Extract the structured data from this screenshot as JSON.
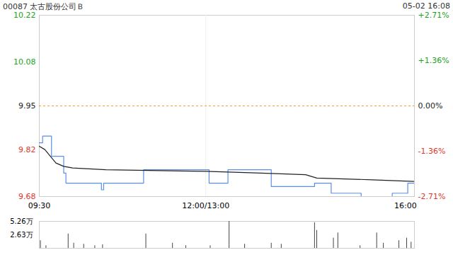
{
  "chart_data": [
    {
      "type": "line",
      "title": "00087 太古股份公司Ｂ",
      "subtitle": "05-02 16:08",
      "baseline": 9.95,
      "xlim": [
        0,
        338
      ],
      "xticks": [
        {
          "value": 0,
          "label": "09:30"
        },
        {
          "value": 150,
          "label": "12:00/13:00"
        },
        {
          "value": 330,
          "label": "16:00"
        }
      ],
      "ylim": [
        9.68,
        10.22
      ],
      "yticks": [
        9.68,
        9.82,
        9.95,
        10.08,
        10.22
      ],
      "y2lim": [
        -2.71,
        2.71
      ],
      "y2ticks": [
        {
          "value": -2.71,
          "label": "-2.71%"
        },
        {
          "value": -1.36,
          "label": "-1.36%"
        },
        {
          "value": 0,
          "label": "0.00%"
        },
        {
          "value": 1.36,
          "label": "+1.36%"
        },
        {
          "value": 2.71,
          "label": "+2.71%"
        }
      ],
      "series": [
        {
          "color": "#5b8ee6",
          "line_style": "step",
          "x": [
            0,
            3,
            11,
            22,
            24,
            56,
            58,
            94,
            153,
            170,
            209,
            248,
            263,
            290,
            318,
            332,
            338
          ],
          "values": [
            9.84,
            9.86,
            9.8,
            9.75,
            9.72,
            9.7,
            9.72,
            9.76,
            9.72,
            9.76,
            9.71,
            9.72,
            9.69,
            9.68,
            9.69,
            9.72,
            9.72
          ]
        },
        {
          "color": "#222222",
          "line_style": "solid",
          "x": [
            0,
            5,
            10,
            15,
            22,
            30,
            60,
            150,
            200,
            240,
            250,
            300,
            338
          ],
          "values": [
            9.83,
            9.82,
            9.8,
            9.78,
            9.77,
            9.765,
            9.76,
            9.755,
            9.75,
            9.745,
            9.735,
            9.73,
            9.725
          ]
        }
      ]
    },
    {
      "type": "bar",
      "color": "#444444",
      "xlim": [
        0,
        338
      ],
      "ylim": [
        0,
        52600
      ],
      "yticks": [
        0,
        {
          "value": 26300,
          "label": "2.63万"
        },
        {
          "value": 52600,
          "label": "5.26万"
        }
      ],
      "x": [
        1,
        6,
        26,
        31,
        40,
        50,
        57,
        96,
        120,
        132,
        154,
        171,
        185,
        209,
        218,
        248,
        250,
        265,
        269,
        289,
        304,
        310,
        324,
        331,
        335
      ],
      "values": [
        15000,
        5000,
        28000,
        10000,
        8000,
        5000,
        7000,
        28000,
        10000,
        5000,
        5000,
        52600,
        8000,
        10000,
        8000,
        50000,
        35000,
        20000,
        30000,
        5000,
        30000,
        10000,
        15000,
        20000,
        12000
      ]
    }
  ]
}
